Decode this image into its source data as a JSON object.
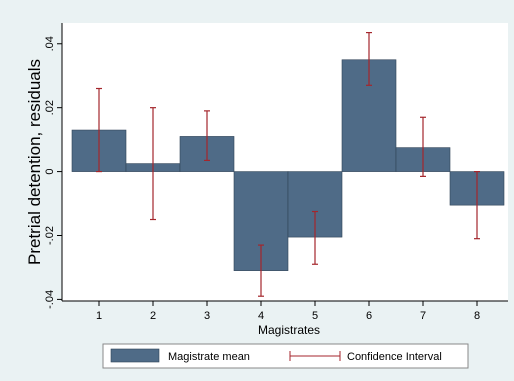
{
  "chart_data": {
    "type": "bar",
    "xlabel": "Magistrates",
    "ylabel": "Pretrial detention, residuals",
    "categories": [
      "1",
      "2",
      "3",
      "4",
      "5",
      "6",
      "7",
      "8"
    ],
    "series": [
      {
        "name": "Magistrate mean",
        "values": [
          0.013,
          0.0025,
          0.011,
          -0.031,
          -0.0205,
          0.035,
          0.0075,
          -0.0105
        ]
      }
    ],
    "confidence_interval": {
      "name": "Confidence Interval",
      "lower": [
        0.0,
        -0.015,
        0.0035,
        -0.039,
        -0.029,
        0.027,
        -0.0015,
        -0.021
      ],
      "upper": [
        0.026,
        0.02,
        0.019,
        -0.023,
        -0.0125,
        0.0435,
        0.017,
        0.0
      ]
    },
    "yticks": [
      -0.04,
      -0.02,
      0,
      0.02,
      0.04
    ],
    "ytick_labels": [
      "-.04",
      "-.02",
      "0",
      ".02",
      ".04"
    ],
    "ylim": [
      -0.0405,
      0.0465
    ],
    "grid": false,
    "legend_position": "bottom",
    "colors": {
      "bar_fill": "#4f6b87",
      "bar_stroke": "#2f4357",
      "ci": "#a4262c",
      "plot_bg": "#ffffff",
      "outer_bg": "#eaf2f3"
    }
  }
}
